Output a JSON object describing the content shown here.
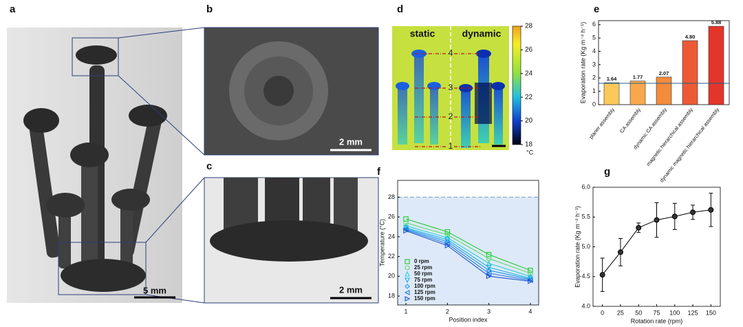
{
  "panels": {
    "a": {
      "label": "a",
      "scale_bar": "5 mm"
    },
    "b": {
      "label": "b",
      "scale_bar": "2 mm"
    },
    "c": {
      "label": "c",
      "scale_bar": "2 mm"
    },
    "d": {
      "label": "d",
      "left": "static",
      "right": "dynamic",
      "positions": [
        "1",
        "2",
        "3",
        "4"
      ],
      "colorbar": {
        "lim": [
          18,
          28
        ],
        "ticks": [
          18,
          20,
          22,
          24,
          26,
          28
        ],
        "unit": "°C"
      }
    }
  },
  "chart_data": [
    {
      "type": "bar",
      "panel": "e",
      "ylabel": "Evaporation rate (Kg m⁻² h⁻¹)",
      "categories": [
        "planer assembly",
        "CA assembly",
        "dynamic CA assembly",
        "magnetic hierarchical assembly",
        "dynamic magnetic hierarchical assembly"
      ],
      "values": [
        1.64,
        1.77,
        2.07,
        4.8,
        5.88
      ],
      "value_labels": [
        "1.64",
        "1.77",
        "2.07",
        "4.80",
        "5.88"
      ],
      "colors": [
        "#fbc85a",
        "#f8a84c",
        "#f38a3c",
        "#ec5a35",
        "#e4352b"
      ],
      "ylim": [
        0,
        6.3
      ],
      "yticks": [
        0,
        1,
        2,
        3,
        4,
        5,
        6
      ],
      "reference_line": 1.6,
      "reference_color": "#1f5f8f"
    },
    {
      "type": "line",
      "panel": "f",
      "xlabel": "Position index",
      "ylabel": "Temperature (°C)",
      "x": [
        1,
        2,
        3,
        4
      ],
      "xlim": [
        0.8,
        4.2
      ],
      "xticks": [
        1,
        2,
        3,
        4
      ],
      "ylim": [
        17.1,
        29.7
      ],
      "yticks": [
        18,
        20,
        22,
        24,
        26,
        28
      ],
      "reference_line": 28,
      "legend": "lower left",
      "series": [
        {
          "name": "0 rpm",
          "color": "#22c832",
          "marker": "square",
          "values": [
            25.8,
            24.5,
            22.2,
            20.6
          ]
        },
        {
          "name": "25 rpm",
          "color": "#5cd96a",
          "marker": "circle",
          "values": [
            25.4,
            24.2,
            21.8,
            20.3
          ]
        },
        {
          "name": "50 rpm",
          "color": "#2fd0d6",
          "marker": "triangle-up",
          "values": [
            25.1,
            23.9,
            21.3,
            20.0
          ]
        },
        {
          "name": "75 rpm",
          "color": "#22b0e0",
          "marker": "triangle-down",
          "values": [
            24.9,
            23.7,
            20.9,
            19.8
          ]
        },
        {
          "name": "100 rpm",
          "color": "#1898ea",
          "marker": "diamond",
          "values": [
            24.8,
            23.5,
            20.6,
            19.7
          ]
        },
        {
          "name": "125 rpm",
          "color": "#2478dc",
          "marker": "triangle-left",
          "values": [
            24.7,
            23.3,
            20.3,
            19.6
          ]
        },
        {
          "name": "150 rpm",
          "color": "#1c55cc",
          "marker": "triangle-right",
          "values": [
            24.6,
            23.1,
            20.0,
            19.5
          ]
        }
      ]
    },
    {
      "type": "errorbar",
      "panel": "g",
      "xlabel": "Rotation rate (rpm)",
      "ylabel": "Evaporation rate (Kg m⁻² h⁻¹)",
      "x": [
        0,
        25,
        50,
        75,
        100,
        125,
        150
      ],
      "xlim": [
        -13,
        163
      ],
      "xticks": [
        0,
        25,
        50,
        75,
        100,
        125,
        150
      ],
      "values": [
        4.53,
        4.91,
        5.32,
        5.45,
        5.51,
        5.58,
        5.62
      ],
      "errors": [
        0.28,
        0.23,
        0.08,
        0.29,
        0.22,
        0.12,
        0.28
      ],
      "color": "#000000",
      "ylim": [
        4,
        6
      ],
      "yticks": [
        {
          "value": 4,
          "label": "4.0"
        },
        {
          "value": 4.5,
          "label": "4.5"
        },
        {
          "value": 5,
          "label": "5.0"
        },
        {
          "value": 5.5,
          "label": "5.5"
        },
        {
          "value": 6,
          "label": "6.0"
        }
      ]
    }
  ]
}
